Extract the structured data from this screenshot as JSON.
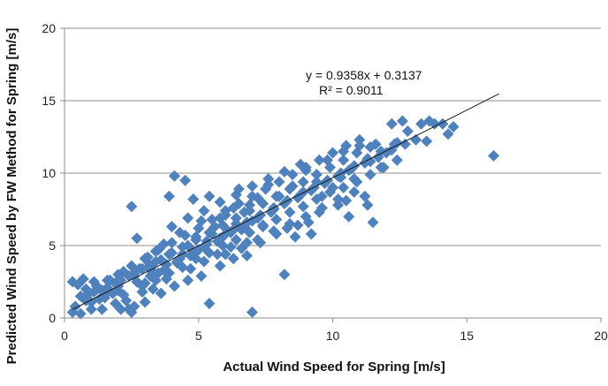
{
  "chart_data": {
    "type": "scatter",
    "title": "",
    "xlabel": "Actual Wind Speed for Spring [m/s]",
    "ylabel": "Predicted Wind  Speed by FW Method for Spring [m/s]",
    "xlim": [
      0,
      20
    ],
    "ylim": [
      0,
      20
    ],
    "xticks": [
      0,
      5,
      10,
      15,
      20
    ],
    "yticks": [
      0,
      5,
      10,
      15,
      20
    ],
    "grid": "horizontal",
    "marker": "diamond",
    "marker_color": "#4F81BD",
    "trendline": {
      "slope": 0.9358,
      "intercept": 0.3137,
      "x_range": [
        0.3,
        16.2
      ],
      "color": "#1a1a1a",
      "equation": "y = 0.9358x + 0.3137",
      "r_squared": "R² = 0.9011"
    },
    "points": [
      [
        0.3,
        0.4
      ],
      [
        0.4,
        0.8
      ],
      [
        0.3,
        2.5
      ],
      [
        0.5,
        2.3
      ],
      [
        0.6,
        0.3
      ],
      [
        0.8,
        1.2
      ],
      [
        0.7,
        2.7
      ],
      [
        1.0,
        0.6
      ],
      [
        1.1,
        1.8
      ],
      [
        1.3,
        1.3
      ],
      [
        1.4,
        0.6
      ],
      [
        1.6,
        2.6
      ],
      [
        1.8,
        1.7
      ],
      [
        2.0,
        2.2
      ],
      [
        2.1,
        0.6
      ],
      [
        2.2,
        3.2
      ],
      [
        2.3,
        1.2
      ],
      [
        2.4,
        0.6
      ],
      [
        2.5,
        0.4
      ],
      [
        2.5,
        7.7
      ],
      [
        2.6,
        2.9
      ],
      [
        2.7,
        5.5
      ],
      [
        2.8,
        3.4
      ],
      [
        2.9,
        1.8
      ],
      [
        3.0,
        2.4
      ],
      [
        3.1,
        4.2
      ],
      [
        3.2,
        3.6
      ],
      [
        3.3,
        2.0
      ],
      [
        3.4,
        4.6
      ],
      [
        3.5,
        3.1
      ],
      [
        3.6,
        4.0
      ],
      [
        3.7,
        5.1
      ],
      [
        3.8,
        2.7
      ],
      [
        3.9,
        8.4
      ],
      [
        4.0,
        4.5
      ],
      [
        4.1,
        9.8
      ],
      [
        4.2,
        3.8
      ],
      [
        4.3,
        5.9
      ],
      [
        4.4,
        4.4
      ],
      [
        4.5,
        9.5
      ],
      [
        4.6,
        5.0
      ],
      [
        4.7,
        3.4
      ],
      [
        4.8,
        8.2
      ],
      [
        4.9,
        5.6
      ],
      [
        5.0,
        4.7
      ],
      [
        5.1,
        6.7
      ],
      [
        5.2,
        3.9
      ],
      [
        5.3,
        5.3
      ],
      [
        5.4,
        1.0
      ],
      [
        5.4,
        8.4
      ],
      [
        5.5,
        5.8
      ],
      [
        5.6,
        6.3
      ],
      [
        5.7,
        4.4
      ],
      [
        5.8,
        6.9
      ],
      [
        5.9,
        5.6
      ],
      [
        6.0,
        7.1
      ],
      [
        6.1,
        6.0
      ],
      [
        6.2,
        4.9
      ],
      [
        6.3,
        7.6
      ],
      [
        6.4,
        6.5
      ],
      [
        6.5,
        8.9
      ],
      [
        6.6,
        6.1
      ],
      [
        6.7,
        7.3
      ],
      [
        6.8,
        5.2
      ],
      [
        6.9,
        7.8
      ],
      [
        7.0,
        0.4
      ],
      [
        7.0,
        6.7
      ],
      [
        7.2,
        8.3
      ],
      [
        7.4,
        6.4
      ],
      [
        7.6,
        9.2
      ],
      [
        7.8,
        7.6
      ],
      [
        8.0,
        8.4
      ],
      [
        8.2,
        3.0
      ],
      [
        8.3,
        6.2
      ],
      [
        8.5,
        9.1
      ],
      [
        8.7,
        6.4
      ],
      [
        8.9,
        8.7
      ],
      [
        9.0,
        10.2
      ],
      [
        9.2,
        5.8
      ],
      [
        9.4,
        9.4
      ],
      [
        9.6,
        8.4
      ],
      [
        9.8,
        10.9
      ],
      [
        10.0,
        9.0
      ],
      [
        10.2,
        7.8
      ],
      [
        10.4,
        11.5
      ],
      [
        10.6,
        10.2
      ],
      [
        10.8,
        9.6
      ],
      [
        11.0,
        11.9
      ],
      [
        11.2,
        8.4
      ],
      [
        11.4,
        10.8
      ],
      [
        11.6,
        12.0
      ],
      [
        11.8,
        10.4
      ],
      [
        12.0,
        11.4
      ],
      [
        12.2,
        13.4
      ],
      [
        12.4,
        12.1
      ],
      [
        12.6,
        13.6
      ],
      [
        12.8,
        12.9
      ],
      [
        13.1,
        12.3
      ],
      [
        13.3,
        13.4
      ],
      [
        13.5,
        12.2
      ],
      [
        13.6,
        13.6
      ],
      [
        13.8,
        13.4
      ],
      [
        14.1,
        13.4
      ],
      [
        14.3,
        12.7
      ],
      [
        14.5,
        13.2
      ],
      [
        16.0,
        11.2
      ],
      [
        11.5,
        6.6
      ],
      [
        11.3,
        7.8
      ],
      [
        10.6,
        7.0
      ],
      [
        10.5,
        8.1
      ],
      [
        10.3,
        9.7
      ],
      [
        9.5,
        7.3
      ],
      [
        9.1,
        6.6
      ],
      [
        8.6,
        5.6
      ],
      [
        7.9,
        5.8
      ],
      [
        7.3,
        5.2
      ],
      [
        6.8,
        4.3
      ],
      [
        6.3,
        4.1
      ],
      [
        5.8,
        3.6
      ],
      [
        5.1,
        2.9
      ],
      [
        4.6,
        2.6
      ],
      [
        4.1,
        2.2
      ],
      [
        3.6,
        1.7
      ],
      [
        3.0,
        1.1
      ],
      [
        2.6,
        0.8
      ],
      [
        1.9,
        1.0
      ],
      [
        1.5,
        1.4
      ],
      [
        2.2,
        1.6
      ],
      [
        2.9,
        2.2
      ],
      [
        3.4,
        2.6
      ],
      [
        3.9,
        3.1
      ],
      [
        4.4,
        3.5
      ],
      [
        4.9,
        4.1
      ],
      [
        5.4,
        4.5
      ],
      [
        5.9,
        5.0
      ],
      [
        6.4,
        5.4
      ],
      [
        6.9,
        5.9
      ],
      [
        7.4,
        6.3
      ],
      [
        7.9,
        6.8
      ],
      [
        8.4,
        7.3
      ],
      [
        8.9,
        7.7
      ],
      [
        9.4,
        8.2
      ],
      [
        9.9,
        8.7
      ],
      [
        10.4,
        9.0
      ],
      [
        10.9,
        9.4
      ],
      [
        11.4,
        9.9
      ],
      [
        11.9,
        10.4
      ],
      [
        12.4,
        10.9
      ],
      [
        2.0,
        3.0
      ],
      [
        2.5,
        3.6
      ],
      [
        3.0,
        4.1
      ],
      [
        3.5,
        4.7
      ],
      [
        4.0,
        5.2
      ],
      [
        4.5,
        5.7
      ],
      [
        5.0,
        6.2
      ],
      [
        5.5,
        6.8
      ],
      [
        6.0,
        7.4
      ],
      [
        6.5,
        7.9
      ],
      [
        7.0,
        8.4
      ],
      [
        7.5,
        8.9
      ],
      [
        8.0,
        9.4
      ],
      [
        8.5,
        9.9
      ],
      [
        9.0,
        10.4
      ],
      [
        9.5,
        10.9
      ],
      [
        10.0,
        11.4
      ],
      [
        10.5,
        11.9
      ],
      [
        11.0,
        12.3
      ],
      [
        1.2,
        2.2
      ],
      [
        1.7,
        2.6
      ],
      [
        0.9,
        1.7
      ],
      [
        1.4,
        1.9
      ],
      [
        1.9,
        2.4
      ],
      [
        2.4,
        2.9
      ],
      [
        2.9,
        3.4
      ],
      [
        3.4,
        3.9
      ],
      [
        3.9,
        4.4
      ],
      [
        4.4,
        4.9
      ],
      [
        4.9,
        5.4
      ],
      [
        5.4,
        5.9
      ],
      [
        5.9,
        6.4
      ],
      [
        6.4,
        6.9
      ],
      [
        6.9,
        7.4
      ],
      [
        7.4,
        7.9
      ],
      [
        7.9,
        8.4
      ],
      [
        8.4,
        8.9
      ],
      [
        8.9,
        9.4
      ],
      [
        9.4,
        9.9
      ],
      [
        9.9,
        10.4
      ],
      [
        10.4,
        10.9
      ],
      [
        10.9,
        11.4
      ],
      [
        11.4,
        11.8
      ],
      [
        3.2,
        2.9
      ],
      [
        3.7,
        3.3
      ],
      [
        4.2,
        3.9
      ],
      [
        4.7,
        4.3
      ],
      [
        5.2,
        4.9
      ],
      [
        5.7,
        5.3
      ],
      [
        6.2,
        5.9
      ],
      [
        6.7,
        6.3
      ],
      [
        7.2,
        6.9
      ],
      [
        7.7,
        7.3
      ],
      [
        8.2,
        7.9
      ],
      [
        8.7,
        8.3
      ],
      [
        9.2,
        8.8
      ],
      [
        9.7,
        9.3
      ],
      [
        10.2,
        9.8
      ],
      [
        10.7,
        10.3
      ],
      [
        11.2,
        10.7
      ],
      [
        11.7,
        11.1
      ],
      [
        12.2,
        11.6
      ],
      [
        12.7,
        12.0
      ],
      [
        2.7,
        2.5
      ],
      [
        3.3,
        3.2
      ],
      [
        3.8,
        3.7
      ],
      [
        4.3,
        4.1
      ],
      [
        4.8,
        4.6
      ],
      [
        5.3,
        5.1
      ],
      [
        5.8,
        5.5
      ],
      [
        6.3,
        6.1
      ],
      [
        6.8,
        6.6
      ],
      [
        7.3,
        7.1
      ],
      [
        7.8,
        7.5
      ],
      [
        8.3,
        8.1
      ],
      [
        8.8,
        8.5
      ],
      [
        9.3,
        9.0
      ],
      [
        9.8,
        9.5
      ],
      [
        10.3,
        10.0
      ],
      [
        10.8,
        10.5
      ],
      [
        11.3,
        11.0
      ],
      [
        11.8,
        11.5
      ],
      [
        12.3,
        12.0
      ],
      [
        4.0,
        6.3
      ],
      [
        4.6,
        6.9
      ],
      [
        5.2,
        7.4
      ],
      [
        5.8,
        8.0
      ],
      [
        6.4,
        8.5
      ],
      [
        7.0,
        9.1
      ],
      [
        7.6,
        9.6
      ],
      [
        8.2,
        10.1
      ],
      [
        8.8,
        10.6
      ],
      [
        6.0,
        4.4
      ],
      [
        6.6,
        4.8
      ],
      [
        7.2,
        5.4
      ],
      [
        7.8,
        6.0
      ],
      [
        8.4,
        6.5
      ],
      [
        9.0,
        7.0
      ],
      [
        9.6,
        7.6
      ],
      [
        10.2,
        8.2
      ],
      [
        10.8,
        8.7
      ],
      [
        1.0,
        1.1
      ],
      [
        1.5,
        1.6
      ],
      [
        2.0,
        1.9
      ],
      [
        0.6,
        1.5
      ],
      [
        0.8,
        2.0
      ],
      [
        1.1,
        2.5
      ],
      [
        1.6,
        2.1
      ],
      [
        2.1,
        2.6
      ],
      [
        2.6,
        3.1
      ],
      [
        3.1,
        3.5
      ],
      [
        3.6,
        4.0
      ]
    ]
  }
}
